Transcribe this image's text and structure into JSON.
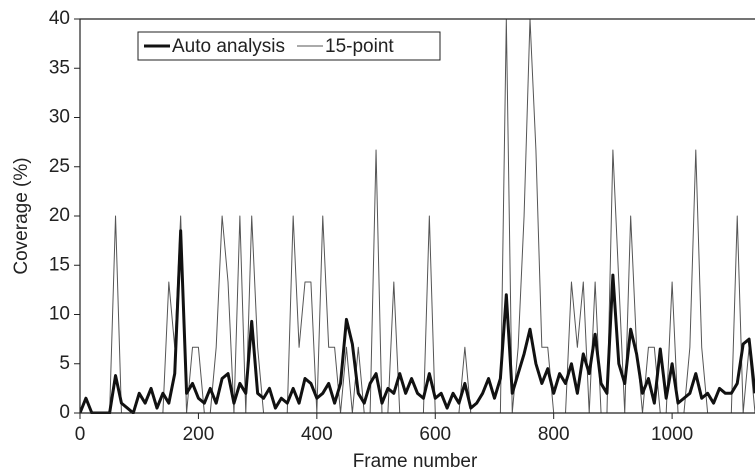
{
  "chart_data": {
    "type": "line",
    "xlabel": "Frame number",
    "ylabel": "Coverage (%)",
    "x": [
      0,
      10,
      20,
      30,
      40,
      50,
      60,
      70,
      80,
      90,
      100,
      110,
      120,
      130,
      140,
      150,
      160,
      170,
      180,
      190,
      200,
      210,
      220,
      230,
      240,
      250,
      260,
      270,
      280,
      290,
      300,
      310,
      320,
      330,
      340,
      350,
      360,
      370,
      380,
      390,
      400,
      410,
      420,
      430,
      440,
      450,
      460,
      470,
      480,
      490,
      500,
      510,
      520,
      530,
      540,
      550,
      560,
      570,
      580,
      590,
      600,
      610,
      620,
      630,
      640,
      650,
      660,
      670,
      680,
      690,
      700,
      710,
      720,
      730,
      740,
      750,
      760,
      770,
      780,
      790,
      800,
      810,
      820,
      830,
      840,
      850,
      860,
      870,
      880,
      890,
      900,
      910,
      920,
      930,
      940,
      950,
      960,
      970,
      980,
      990,
      1000,
      1010,
      1020,
      1030,
      1040,
      1050,
      1060,
      1070,
      1080,
      1090,
      1100,
      1110,
      1120,
      1130,
      1140
    ],
    "series": [
      {
        "name": "Auto analysis",
        "color": "#111111",
        "width": 3,
        "values": [
          0,
          1.5,
          0,
          0,
          0,
          0,
          3.8,
          1,
          0.5,
          0,
          2,
          1,
          2.5,
          0.5,
          2,
          1,
          4,
          18.5,
          2,
          3,
          1.5,
          1,
          2.5,
          1,
          3.5,
          4,
          1,
          3,
          2,
          9.3,
          2,
          1.5,
          2.5,
          0.5,
          1.5,
          1,
          2.5,
          1,
          3.5,
          3,
          1.5,
          2,
          3,
          1,
          3,
          9.5,
          7,
          2,
          1,
          3,
          4,
          1,
          2.5,
          2,
          4,
          2,
          3.5,
          2,
          1.5,
          4,
          1.5,
          2,
          0.5,
          2,
          1,
          3,
          0.5,
          1,
          2,
          3.5,
          1.5,
          3.5,
          12,
          2,
          4,
          6,
          8.5,
          5,
          3,
          4.5,
          2,
          4,
          3,
          5,
          2,
          6,
          4,
          8,
          3,
          2,
          14,
          5,
          3,
          8.5,
          6,
          2,
          3.5,
          1,
          6.5,
          1.5,
          5,
          1,
          1.5,
          2,
          4,
          1.5,
          2,
          1,
          2.5,
          2,
          2,
          3,
          7,
          7.5,
          2
        ]
      },
      {
        "name": "15-point",
        "color": "#555555",
        "width": 1,
        "values": [
          0,
          0,
          0,
          0,
          0,
          0,
          20,
          0,
          0,
          0,
          0,
          0,
          0,
          0,
          0,
          13.3,
          6.67,
          20,
          0,
          6.67,
          6.67,
          0,
          0,
          6.67,
          20,
          13.3,
          0,
          20,
          0,
          20,
          6.67,
          0,
          0,
          0,
          0,
          0,
          20,
          6.67,
          13.3,
          13.3,
          0,
          20,
          6.67,
          6.67,
          0,
          6.67,
          0,
          6.67,
          0,
          0,
          26.7,
          0,
          0,
          13.3,
          0,
          0,
          0,
          0,
          0,
          20,
          0,
          0,
          0,
          0,
          0,
          6.67,
          0,
          0,
          0,
          0,
          0,
          0,
          40,
          0,
          6.67,
          20,
          40,
          26.7,
          6.67,
          6.67,
          0,
          0,
          0,
          13.3,
          6.67,
          13.3,
          0,
          13.3,
          0,
          0,
          26.7,
          13.3,
          0,
          20,
          6.67,
          0,
          6.67,
          6.67,
          0,
          0,
          13.3,
          0,
          0,
          6.67,
          26.7,
          6.67,
          0,
          0,
          0,
          0,
          0,
          20,
          0,
          6.67,
          0
        ]
      }
    ],
    "xlim": [
      0,
      1140
    ],
    "xticks": [
      0,
      200,
      400,
      600,
      800,
      1000
    ],
    "ylim": [
      0,
      40
    ],
    "yticks": [
      0,
      5,
      10,
      15,
      20,
      25,
      30,
      35,
      40
    ],
    "legend": "top-left",
    "grid": false
  }
}
